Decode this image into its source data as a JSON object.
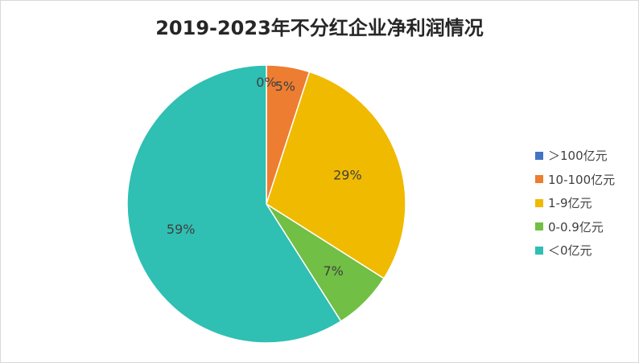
{
  "chart_data": {
    "type": "pie",
    "title": "2019-2023年不分红企业净利润情况",
    "categories": [
      ">100亿元",
      "10-100亿元",
      "1-9亿元",
      "0-0.9亿元",
      "<0亿元"
    ],
    "legend_labels": [
      "＞100亿元",
      "10-100亿元",
      "1-9亿元",
      "0-0.9亿元",
      "＜0亿元"
    ],
    "values": [
      0,
      5,
      29,
      7,
      59
    ],
    "data_labels": [
      "0%",
      "5%",
      "29%",
      "7%",
      "59%"
    ],
    "colors": [
      "#4472C4",
      "#ED7D31",
      "#F0BA00",
      "#71BF44",
      "#2FBFB3"
    ],
    "legend_position": "right"
  }
}
